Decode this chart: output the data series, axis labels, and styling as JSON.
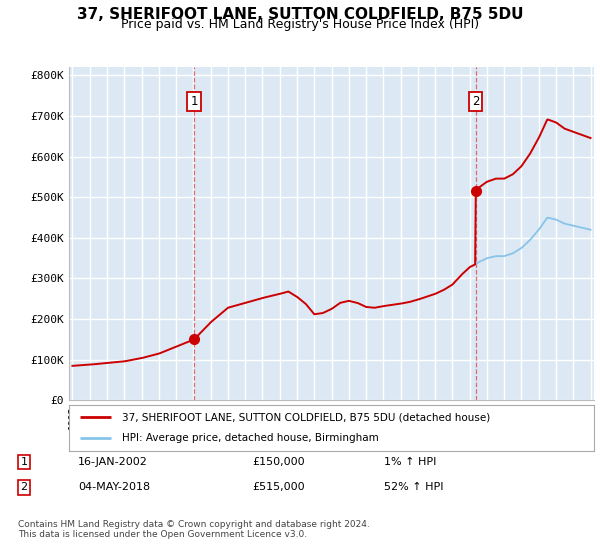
{
  "title": "37, SHERIFOOT LANE, SUTTON COLDFIELD, B75 5DU",
  "subtitle": "Price paid vs. HM Land Registry's House Price Index (HPI)",
  "ylim": [
    0,
    820000
  ],
  "yticks": [
    0,
    100000,
    200000,
    300000,
    400000,
    500000,
    600000,
    700000,
    800000
  ],
  "ytick_labels": [
    "£0",
    "£100K",
    "£200K",
    "£300K",
    "£400K",
    "£500K",
    "£600K",
    "£700K",
    "£800K"
  ],
  "bg_color": "#dce9f5",
  "grid_color": "#ffffff",
  "hpi_color": "#88c4e8",
  "price_color": "#cc0000",
  "sale1_t": 2002.04,
  "sale1_p": 150000,
  "sale2_t": 2018.34,
  "sale2_p": 515000,
  "legend_line1": "37, SHERIFOOT LANE, SUTTON COLDFIELD, B75 5DU (detached house)",
  "legend_line2": "HPI: Average price, detached house, Birmingham",
  "table_row1": [
    "1",
    "16-JAN-2002",
    "£150,000",
    "1% ↑ HPI"
  ],
  "table_row2": [
    "2",
    "04-MAY-2018",
    "£515,000",
    "52% ↑ HPI"
  ],
  "footnote": "Contains HM Land Registry data © Crown copyright and database right 2024.\nThis data is licensed under the Open Government Licence v3.0.",
  "title_fontsize": 11,
  "subtitle_fontsize": 9
}
